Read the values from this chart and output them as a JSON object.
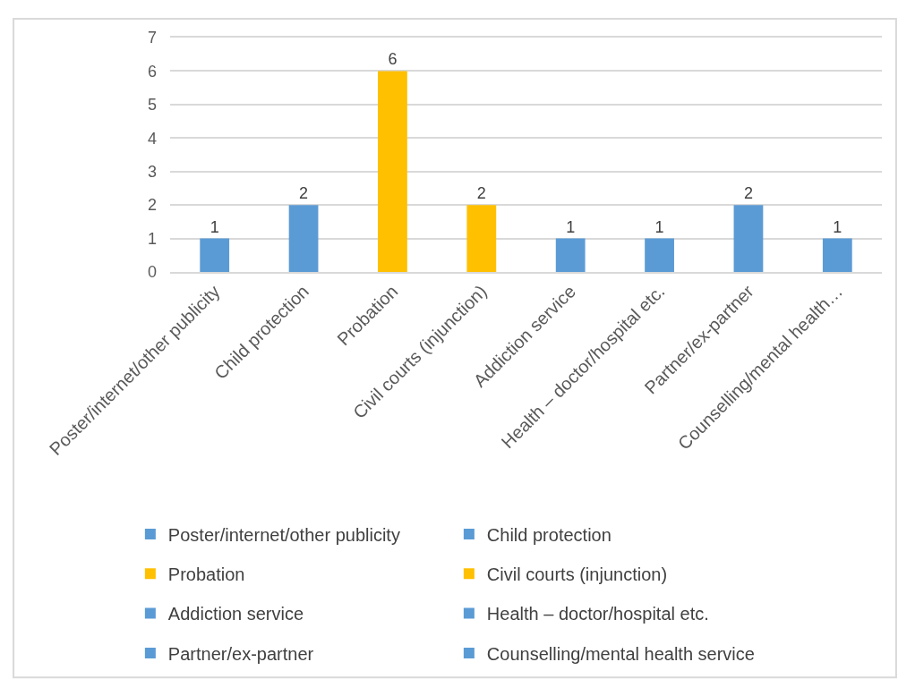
{
  "chart_data": {
    "type": "bar",
    "categories": [
      "Poster/internet/other publicity",
      "Child protection",
      "Probation",
      "Civil courts (injunction)",
      "Addiction service",
      "Health – doctor/hospital etc.",
      "Partner/ex-partner",
      "Counselling/mental health…"
    ],
    "series": [
      {
        "name": "Poster/internet/other publicity",
        "color": "#5b9bd5",
        "values": [
          1,
          null,
          null,
          null,
          null,
          null,
          null,
          null
        ]
      },
      {
        "name": "Child protection",
        "color": "#5b9bd5",
        "values": [
          null,
          2,
          null,
          null,
          null,
          null,
          null,
          null
        ]
      },
      {
        "name": "Probation",
        "color": "#ffc000",
        "values": [
          null,
          null,
          6,
          null,
          null,
          null,
          null,
          null
        ]
      },
      {
        "name": "Civil courts (injunction)",
        "color": "#ffc000",
        "values": [
          null,
          null,
          null,
          2,
          null,
          null,
          null,
          null
        ]
      },
      {
        "name": "Addiction service",
        "color": "#5b9bd5",
        "values": [
          null,
          null,
          null,
          null,
          1,
          null,
          null,
          null
        ]
      },
      {
        "name": "Health – doctor/hospital etc.",
        "color": "#5b9bd5",
        "values": [
          null,
          null,
          null,
          null,
          null,
          1,
          null,
          null
        ]
      },
      {
        "name": "Partner/ex-partner",
        "color": "#5b9bd5",
        "values": [
          null,
          null,
          null,
          null,
          null,
          null,
          2,
          null
        ]
      },
      {
        "name": "Counselling/mental health service",
        "color": "#5b9bd5",
        "values": [
          null,
          null,
          null,
          null,
          null,
          null,
          null,
          1
        ]
      }
    ],
    "ylim": [
      0,
      7
    ],
    "yticks": [
      0,
      1,
      2,
      3,
      4,
      5,
      6,
      7
    ],
    "grid": "y",
    "legend": "bottom",
    "data_labels": true
  }
}
